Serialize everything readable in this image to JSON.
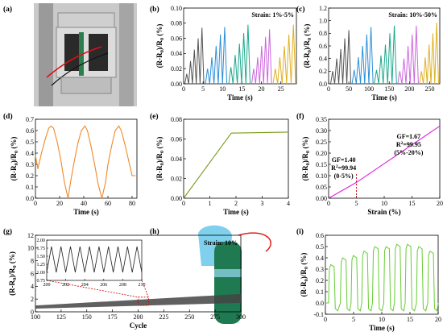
{
  "panels": {
    "a": {
      "label": "(a)"
    },
    "b": {
      "label": "(b)"
    },
    "c": {
      "label": "(c)"
    },
    "d": {
      "label": "(d)"
    },
    "e": {
      "label": "(e)"
    },
    "f": {
      "label": "(f)"
    },
    "g": {
      "label": "(g)"
    },
    "h": {
      "label": "(h)"
    },
    "i": {
      "label": "(i)"
    }
  },
  "colors": {
    "gray": "#555555",
    "blue": "#2b8fd8",
    "green": "#1aa88a",
    "violet": "#cc66dd",
    "gold": "#e0b020",
    "orange": "#f08a2a",
    "olive": "#7a9a20",
    "magenta": "#dd22dd",
    "red_dashed": "#cc0000",
    "lime": "#66cc33",
    "dark_band": "#444444"
  },
  "chart_data": [
    {
      "id": "b",
      "type": "line",
      "xlabel": "Time (s)",
      "ylabel": "(R-R0)/R0 (%)",
      "xlim": [
        0,
        29
      ],
      "ylim": [
        0,
        0.1
      ],
      "xticks": [
        "0",
        "5",
        "10",
        "15",
        "20",
        "25"
      ],
      "yticks": [
        "0.00",
        "0.02",
        "0.04",
        "0.06",
        "0.08",
        "0.10"
      ],
      "annotation": "Strain: 1%-5%",
      "segments": [
        {
          "color": "gray",
          "t0": 0.3,
          "t1": 5.2,
          "peaks": [
            0.013,
            0.03,
            0.045,
            0.06,
            0.074
          ]
        },
        {
          "color": "blue",
          "t0": 5.6,
          "t1": 11.1,
          "peaks": [
            0.02,
            0.035,
            0.05,
            0.065,
            0.075
          ]
        },
        {
          "color": "green",
          "t0": 11.6,
          "t1": 17.1,
          "peaks": [
            0.022,
            0.038,
            0.053,
            0.067,
            0.078
          ]
        },
        {
          "color": "violet",
          "t0": 17.5,
          "t1": 22.6,
          "peaks": [
            0.02,
            0.035,
            0.05,
            0.062,
            0.072
          ]
        },
        {
          "color": "gold",
          "t0": 23.0,
          "t1": 28.8,
          "peaks": [
            0.02,
            0.035,
            0.05,
            0.065,
            0.078
          ]
        }
      ]
    },
    {
      "id": "c",
      "type": "line",
      "xlabel": "Time (s)",
      "ylabel": "(R-R0)/R0 (%)",
      "xlim": [
        0,
        275
      ],
      "ylim": [
        0,
        1.2
      ],
      "xticks": [
        "0",
        "50",
        "100",
        "150",
        "200",
        "250"
      ],
      "yticks": [
        "0.0",
        "0.2",
        "0.4",
        "0.6",
        "0.8",
        "1.0",
        "1.2"
      ],
      "annotation": "Strain: 10%-50%",
      "segments": [
        {
          "color": "gray",
          "t0": 5,
          "t1": 55,
          "peaks": [
            0.2,
            0.4,
            0.55,
            0.72,
            0.85
          ]
        },
        {
          "color": "blue",
          "t0": 58,
          "t1": 110,
          "peaks": [
            0.22,
            0.42,
            0.6,
            0.78,
            0.9
          ]
        },
        {
          "color": "green",
          "t0": 113,
          "t1": 168,
          "peaks": [
            0.22,
            0.45,
            0.62,
            0.8,
            0.92
          ]
        },
        {
          "color": "violet",
          "t0": 171,
          "t1": 222,
          "peaks": [
            0.2,
            0.4,
            0.6,
            0.78,
            0.92
          ]
        },
        {
          "color": "gold",
          "t0": 225,
          "t1": 272,
          "peaks": [
            0.2,
            0.42,
            0.62,
            0.8,
            0.97
          ]
        }
      ]
    },
    {
      "id": "d",
      "type": "line",
      "xlabel": "Time (s)",
      "ylabel": "(R-R0)/R0 (%)",
      "xlim": [
        0,
        84
      ],
      "ylim": [
        0,
        0.7
      ],
      "xticks": [
        "0",
        "20",
        "40",
        "60",
        "80"
      ],
      "yticks": [
        "0.0",
        "0.1",
        "0.2",
        "0.3",
        "0.4",
        "0.5",
        "0.6",
        "0.7"
      ],
      "color": "orange",
      "x": [
        0,
        2,
        5,
        8,
        11,
        13,
        15,
        18,
        21,
        24,
        27,
        29,
        32,
        35,
        38,
        41,
        43,
        46,
        49,
        52,
        55,
        58,
        60,
        63,
        66,
        69,
        71,
        74,
        77,
        80,
        83
      ],
      "y": [
        0.38,
        0.26,
        0.4,
        0.52,
        0.62,
        0.64,
        0.62,
        0.5,
        0.34,
        0.14,
        0.0,
        0.14,
        0.32,
        0.48,
        0.6,
        0.64,
        0.6,
        0.46,
        0.3,
        0.12,
        0.0,
        0.14,
        0.3,
        0.46,
        0.6,
        0.64,
        0.6,
        0.48,
        0.34,
        0.2,
        0.2
      ]
    },
    {
      "id": "e",
      "type": "line",
      "xlabel": "Time (s)",
      "ylabel": "(R-R0)/R0 (%)",
      "xlim": [
        0,
        4
      ],
      "ylim": [
        0,
        0.08
      ],
      "xticks": [
        "0",
        "1",
        "2",
        "3",
        "4"
      ],
      "yticks": [
        "0.00",
        "0.02",
        "0.04",
        "0.06",
        "0.08"
      ],
      "color": "olive",
      "x": [
        0,
        1.82,
        4
      ],
      "y": [
        0.0,
        0.066,
        0.067
      ]
    },
    {
      "id": "f",
      "type": "line",
      "xlabel": "Strain (%)",
      "ylabel": "(R-R0)/R0 (%)",
      "xlim": [
        0,
        20
      ],
      "ylim": [
        0,
        0.35
      ],
      "xticks": [
        "0",
        "5",
        "10",
        "15",
        "20"
      ],
      "yticks": [
        "0.00",
        "0.05",
        "0.10",
        "0.15",
        "0.20",
        "0.25",
        "0.30",
        "0.35"
      ],
      "color": "magenta",
      "x": [
        0,
        5,
        20
      ],
      "y": [
        0.0,
        0.07,
        0.32
      ],
      "marker_x": 5,
      "annotations": [
        {
          "id": "gf1",
          "lines": [
            "GF=1.67",
            "R2=99.95",
            "(5%-20%)"
          ]
        },
        {
          "id": "gf2",
          "lines": [
            "GF=1.40",
            "R2=99.94",
            "(0-5%)"
          ]
        }
      ]
    },
    {
      "id": "g",
      "type": "area",
      "xlabel": "Cycle",
      "ylabel": "(R-R0)/R0 (%)",
      "xlim": [
        100,
        300
      ],
      "ylim": [
        0,
        12
      ],
      "xticks": [
        "100",
        "125",
        "150",
        "175",
        "200",
        "225",
        "250",
        "275",
        "300"
      ],
      "yticks": [
        "0",
        "2",
        "4",
        "6",
        "8",
        "10",
        "12"
      ],
      "annotation": "Strain: 10%",
      "band_low": [
        [
          100,
          0.5
        ],
        [
          300,
          1.4
        ]
      ],
      "band_high": [
        [
          100,
          1.0
        ],
        [
          300,
          2.8
        ]
      ],
      "zoom_x": [
        200,
        210
      ],
      "inset": {
        "xlim": [
          200,
          210
        ],
        "ylim": [
          0.75,
          2.0
        ],
        "xticks": [
          "200",
          "202",
          "204",
          "206",
          "208",
          "210"
        ],
        "yticks": [
          "0.75",
          "1.00",
          "1.25",
          "1.50",
          "1.75",
          "2.00"
        ],
        "cycles": 10,
        "low": 1.0,
        "high": 1.8
      }
    },
    {
      "id": "i",
      "type": "line",
      "xlabel": "Time (s)",
      "ylabel": "(R-R0)/R0 (%)",
      "xlim": [
        0,
        20
      ],
      "ylim": [
        -0.1,
        0.6
      ],
      "xticks": [
        "0",
        "5",
        "10",
        "15",
        "20"
      ],
      "yticks": [
        "-0.1",
        "0.0",
        "0.1",
        "0.2",
        "0.3",
        "0.4",
        "0.5",
        "0.6"
      ],
      "color": "lime",
      "baseline": 0.0,
      "pulses": [
        {
          "t": 0.7,
          "h": 0.34
        },
        {
          "t": 2.8,
          "h": 0.4
        },
        {
          "t": 4.7,
          "h": 0.42
        },
        {
          "t": 6.6,
          "h": 0.46
        },
        {
          "t": 8.5,
          "h": 0.5
        },
        {
          "t": 10.5,
          "h": 0.5
        },
        {
          "t": 12.4,
          "h": 0.52
        },
        {
          "t": 14.3,
          "h": 0.52
        },
        {
          "t": 16.3,
          "h": 0.5
        },
        {
          "t": 18.3,
          "h": 0.46
        }
      ]
    }
  ]
}
